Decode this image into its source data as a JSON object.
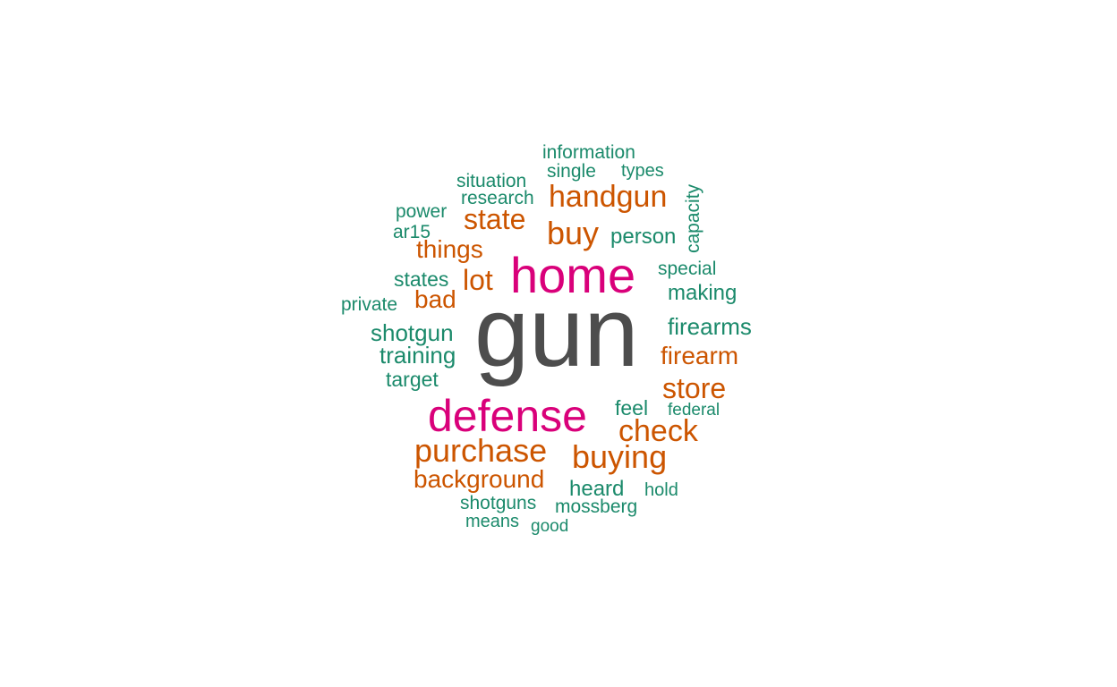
{
  "colors": {
    "dark_gray": "#4d4d4d",
    "magenta": "#d9007a",
    "orange": "#cc5500",
    "teal": "#1b8a6b"
  },
  "words": [
    {
      "text": "gun",
      "color": "#4d4d4d"
    },
    {
      "text": "home",
      "color": "#d9007a"
    },
    {
      "text": "defense",
      "color": "#d9007a"
    },
    {
      "text": "handgun",
      "color": "#cc5500"
    },
    {
      "text": "state",
      "color": "#cc5500"
    },
    {
      "text": "buy",
      "color": "#cc5500"
    },
    {
      "text": "things",
      "color": "#cc5500"
    },
    {
      "text": "lot",
      "color": "#cc5500"
    },
    {
      "text": "bad",
      "color": "#cc5500"
    },
    {
      "text": "firearm",
      "color": "#cc5500"
    },
    {
      "text": "store",
      "color": "#cc5500"
    },
    {
      "text": "check",
      "color": "#cc5500"
    },
    {
      "text": "purchase",
      "color": "#cc5500"
    },
    {
      "text": "buying",
      "color": "#cc5500"
    },
    {
      "text": "background",
      "color": "#cc5500"
    },
    {
      "text": "information",
      "color": "#1b8a6b"
    },
    {
      "text": "single",
      "color": "#1b8a6b"
    },
    {
      "text": "types",
      "color": "#1b8a6b"
    },
    {
      "text": "situation",
      "color": "#1b8a6b"
    },
    {
      "text": "research",
      "color": "#1b8a6b"
    },
    {
      "text": "power",
      "color": "#1b8a6b"
    },
    {
      "text": "ar15",
      "color": "#1b8a6b"
    },
    {
      "text": "person",
      "color": "#1b8a6b"
    },
    {
      "text": "capacity",
      "color": "#1b8a6b"
    },
    {
      "text": "special",
      "color": "#1b8a6b"
    },
    {
      "text": "making",
      "color": "#1b8a6b"
    },
    {
      "text": "states",
      "color": "#1b8a6b"
    },
    {
      "text": "private",
      "color": "#1b8a6b"
    },
    {
      "text": "shotgun",
      "color": "#1b8a6b"
    },
    {
      "text": "firearms",
      "color": "#1b8a6b"
    },
    {
      "text": "training",
      "color": "#1b8a6b"
    },
    {
      "text": "target",
      "color": "#1b8a6b"
    },
    {
      "text": "feel",
      "color": "#1b8a6b"
    },
    {
      "text": "federal",
      "color": "#1b8a6b"
    },
    {
      "text": "heard",
      "color": "#1b8a6b"
    },
    {
      "text": "hold",
      "color": "#1b8a6b"
    },
    {
      "text": "shotguns",
      "color": "#1b8a6b"
    },
    {
      "text": "mossberg",
      "color": "#1b8a6b"
    },
    {
      "text": "means",
      "color": "#1b8a6b"
    },
    {
      "text": "good",
      "color": "#1b8a6b"
    }
  ]
}
